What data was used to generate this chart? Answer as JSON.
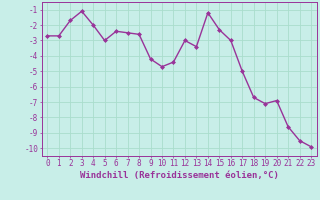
{
  "x": [
    0,
    1,
    2,
    3,
    4,
    5,
    6,
    7,
    8,
    9,
    10,
    11,
    12,
    13,
    14,
    15,
    16,
    17,
    18,
    19,
    20,
    21,
    22,
    23
  ],
  "y": [
    -2.7,
    -2.7,
    -1.7,
    -1.1,
    -2.0,
    -3.0,
    -2.4,
    -2.5,
    -2.6,
    -4.2,
    -4.7,
    -4.4,
    -3.0,
    -3.4,
    -1.2,
    -2.3,
    -3.0,
    -5.0,
    -6.7,
    -7.1,
    -6.9,
    -8.6,
    -9.5,
    -9.9
  ],
  "line_color": "#993399",
  "marker": "D",
  "marker_size": 2.0,
  "linewidth": 1.0,
  "xlabel": "Windchill (Refroidissement éolien,°C)",
  "xlabel_fontsize": 6.5,
  "ylim": [
    -10.5,
    -0.5
  ],
  "xlim": [
    -0.5,
    23.5
  ],
  "yticks": [
    -10,
    -9,
    -8,
    -7,
    -6,
    -5,
    -4,
    -3,
    -2,
    -1
  ],
  "xticks": [
    0,
    1,
    2,
    3,
    4,
    5,
    6,
    7,
    8,
    9,
    10,
    11,
    12,
    13,
    14,
    15,
    16,
    17,
    18,
    19,
    20,
    21,
    22,
    23
  ],
  "grid_color": "#aaddcc",
  "bg_color": "#c8eee8",
  "tick_color": "#993399",
  "tick_fontsize": 5.5,
  "spine_color": "#993399"
}
